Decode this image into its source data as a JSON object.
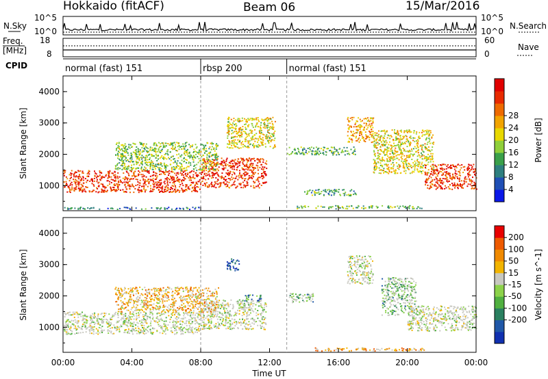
{
  "header": {
    "station": "Hokkaido (fitACF)",
    "beam": "Beam 06",
    "date": "15/Mar/2016"
  },
  "strip_labels": {
    "nsky": "N.Sky",
    "nsky_hi": "10^5",
    "nsky_lo": "10^0",
    "nsearch": "N.Search",
    "nsearch_hi": "10^5",
    "nsearch_lo": "10^0",
    "freq": "Freq.",
    "freq_unit": "[MHz]",
    "freq_hi": "18",
    "freq_lo": "8",
    "nave": "Nave",
    "nave_hi": "60",
    "nave_lo": "0",
    "cpid": "CPID"
  },
  "cpid_modes": [
    {
      "label": "normal (fast) 151",
      "start_hour": 0,
      "end_hour": 8
    },
    {
      "label": "rbsp 200",
      "start_hour": 8,
      "end_hour": 13
    },
    {
      "label": "normal (fast) 151",
      "start_hour": 13,
      "end_hour": 24
    }
  ],
  "chart_data": [
    {
      "type": "heatmap",
      "title": "",
      "xlabel": "Time UT",
      "ylabel": "Slant Range [km]",
      "x_ticks": [
        "00:00",
        "04:00",
        "08:00",
        "12:00",
        "16:00",
        "20:00",
        "00:00"
      ],
      "y_ticks": [
        "1000",
        "2000",
        "3000",
        "4000"
      ],
      "xlim_hours": [
        0,
        24
      ],
      "ylim_km": [
        200,
        4500
      ],
      "colorbar": {
        "label": "Power [dB]",
        "ticks": [
          "4",
          "8",
          "12",
          "16",
          "20",
          "24",
          "28"
        ],
        "range": [
          0,
          30
        ],
        "colors": [
          "#0a18e8",
          "#1f4fb5",
          "#2e7f7f",
          "#3aa04a",
          "#8fcf3a",
          "#e8d800",
          "#f2a400",
          "#ee6a00",
          "#e82a00",
          "#e00000"
        ]
      },
      "bands": [
        {
          "t0": 0.0,
          "t1": 8.0,
          "r0": 800,
          "r1": 1500,
          "level": 0.85
        },
        {
          "t0": 8.0,
          "t1": 11.8,
          "r0": 950,
          "r1": 1900,
          "level": 0.85
        },
        {
          "t0": 9.5,
          "t1": 12.3,
          "r0": 2200,
          "r1": 3200,
          "level": 0.55
        },
        {
          "t0": 3.0,
          "t1": 9.0,
          "r0": 1500,
          "r1": 2400,
          "level": 0.45
        },
        {
          "t0": 13.0,
          "t1": 17.0,
          "r0": 2000,
          "r1": 2250,
          "level": 0.35
        },
        {
          "t0": 14.0,
          "t1": 17.0,
          "r0": 700,
          "r1": 900,
          "level": 0.35
        },
        {
          "t0": 16.5,
          "t1": 18.0,
          "r0": 2400,
          "r1": 3200,
          "level": 0.65
        },
        {
          "t0": 18.0,
          "t1": 21.5,
          "r0": 1400,
          "r1": 2800,
          "level": 0.55
        },
        {
          "t0": 21.0,
          "t1": 24.0,
          "r0": 900,
          "r1": 1700,
          "level": 0.85
        },
        {
          "t0": 13.5,
          "t1": 21.0,
          "r0": 280,
          "r1": 380,
          "level": 0.4
        },
        {
          "t0": 0.0,
          "t1": 8.0,
          "r0": 260,
          "r1": 330,
          "level": 0.25
        }
      ]
    },
    {
      "type": "heatmap",
      "title": "",
      "xlabel": "Time UT",
      "ylabel": "Slant Range [km]",
      "x_ticks": [
        "00:00",
        "04:00",
        "08:00",
        "12:00",
        "16:00",
        "20:00",
        "00:00"
      ],
      "y_ticks": [
        "1000",
        "2000",
        "3000",
        "4000"
      ],
      "xlim_hours": [
        0,
        24
      ],
      "ylim_km": [
        200,
        4500
      ],
      "colorbar": {
        "label": "Velocity [m s^-1]",
        "ticks": [
          "200",
          "100",
          "50",
          "15",
          "-15",
          "-50",
          "-100",
          "-200"
        ],
        "colors": [
          "#1030b0",
          "#2058a8",
          "#2a8060",
          "#50b040",
          "#8cd24a",
          "#c8c8c0",
          "#f2b400",
          "#f08a00",
          "#ee5a00",
          "#e80000"
        ]
      },
      "bands": [
        {
          "t0": 0.0,
          "t1": 8.0,
          "r0": 800,
          "r1": 1500,
          "level": 0.5
        },
        {
          "t0": 8.0,
          "t1": 11.8,
          "r0": 950,
          "r1": 1900,
          "level": 0.5
        },
        {
          "t0": 10.5,
          "t1": 11.5,
          "r0": 1850,
          "r1": 2050,
          "level": 0.25
        },
        {
          "t0": 9.5,
          "t1": 10.2,
          "r0": 2800,
          "r1": 3200,
          "level": 0.05
        },
        {
          "t0": 3.0,
          "t1": 9.0,
          "r0": 1500,
          "r1": 2300,
          "level": 0.65
        },
        {
          "t0": 13.0,
          "t1": 14.5,
          "r0": 1800,
          "r1": 2100,
          "level": 0.35
        },
        {
          "t0": 16.5,
          "t1": 18.0,
          "r0": 2400,
          "r1": 3300,
          "level": 0.5
        },
        {
          "t0": 18.5,
          "t1": 20.5,
          "r0": 1400,
          "r1": 2600,
          "level": 0.35
        },
        {
          "t0": 20.0,
          "t1": 24.0,
          "r0": 900,
          "r1": 1700,
          "level": 0.5
        },
        {
          "t0": 14.5,
          "t1": 21.0,
          "r0": 260,
          "r1": 360,
          "level": 0.7
        }
      ]
    }
  ]
}
